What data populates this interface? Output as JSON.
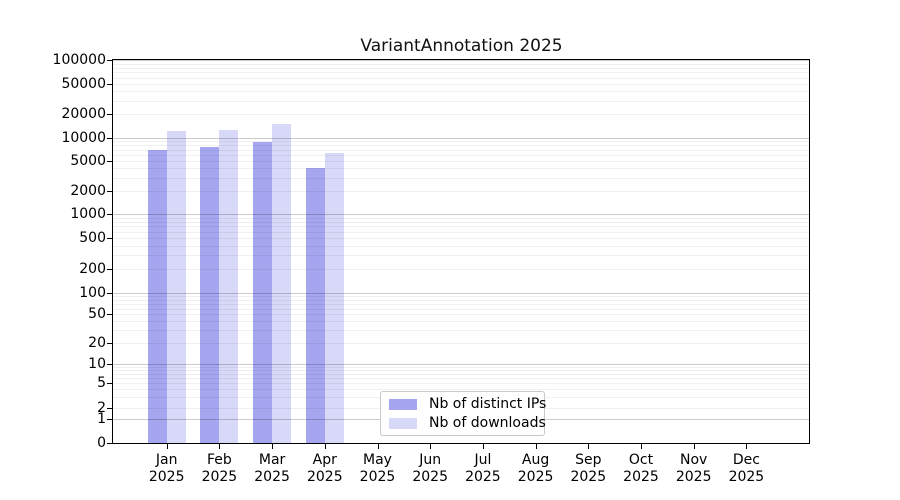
{
  "chart_data": {
    "type": "bar",
    "title": "VariantAnnotation 2025",
    "categories": [
      "Jan",
      "Feb",
      "Mar",
      "Apr",
      "May",
      "Jun",
      "Jul",
      "Aug",
      "Sep",
      "Oct",
      "Nov",
      "Dec"
    ],
    "year": "2025",
    "series": [
      {
        "name": "Nb of distinct IPs",
        "color": "#a5a5f0",
        "values": [
          7000,
          7500,
          8900,
          4000,
          null,
          null,
          null,
          null,
          null,
          null,
          null,
          null
        ]
      },
      {
        "name": "Nb of downloads",
        "color": "#d8d8f8",
        "values": [
          12000,
          12600,
          14800,
          6300,
          null,
          null,
          null,
          null,
          null,
          null,
          null,
          null
        ]
      }
    ],
    "yscale": "symlog",
    "ylim": [
      0,
      100000
    ],
    "yticks": [
      0,
      1,
      2,
      5,
      10,
      20,
      50,
      100,
      200,
      500,
      1000,
      2000,
      5000,
      10000,
      20000,
      50000,
      100000
    ],
    "grid": true,
    "legend_position": "bottom-center"
  }
}
